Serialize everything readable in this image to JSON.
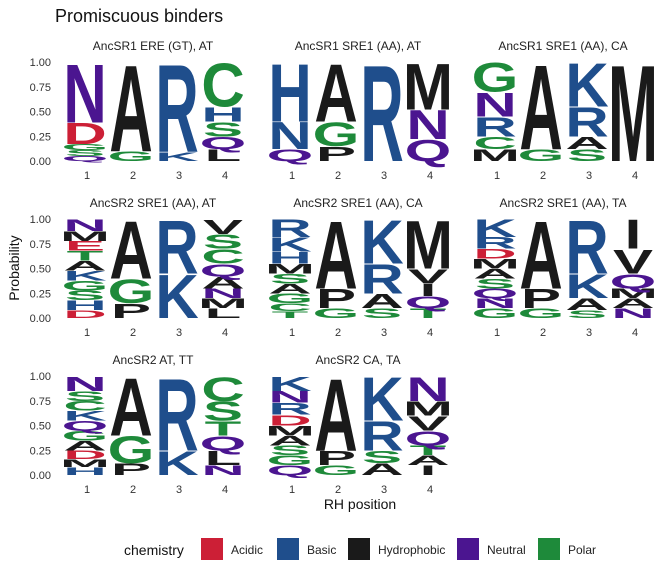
{
  "chart_data": {
    "type": "sequence-logo",
    "title": "Promiscuous binders",
    "xlabel": "RH position",
    "ylabel": "Probability",
    "ylim": [
      0,
      1
    ],
    "y_ticks": [
      "0.00",
      "0.25",
      "0.50",
      "0.75",
      "1.00"
    ],
    "x_ticks": [
      "1",
      "2",
      "3",
      "4"
    ],
    "legend": {
      "title": "chemistry",
      "position": "bottom",
      "entries": [
        {
          "label": "Acidic",
          "color": "#cc1f36"
        },
        {
          "label": "Basic",
          "color": "#1f4e8c"
        },
        {
          "label": "Hydrophobic",
          "color": "#1a1a1a"
        },
        {
          "label": "Neutral",
          "color": "#4b1590"
        },
        {
          "label": "Polar",
          "color": "#1e8a3a"
        }
      ]
    },
    "panels": [
      {
        "title": "AncSR1 ERE (GT), AT",
        "positions": [
          [
            {
              "aa": "N",
              "p": 0.61,
              "chem": "Neutral"
            },
            {
              "aa": "D",
              "p": 0.22,
              "chem": "Acidic"
            },
            {
              "aa": "S",
              "p": 0.06,
              "chem": "Polar"
            },
            {
              "aa": "G",
              "p": 0.06,
              "chem": "Polar"
            },
            {
              "aa": "Q",
              "p": 0.05,
              "chem": "Neutral"
            }
          ],
          [
            {
              "aa": "A",
              "p": 0.9,
              "chem": "Hydrophobic"
            },
            {
              "aa": "G",
              "p": 0.1,
              "chem": "Polar"
            }
          ],
          [
            {
              "aa": "R",
              "p": 0.91,
              "chem": "Basic"
            },
            {
              "aa": "K",
              "p": 0.09,
              "chem": "Basic"
            }
          ],
          [
            {
              "aa": "C",
              "p": 0.45,
              "chem": "Polar"
            },
            {
              "aa": "S",
              "p": 0.15,
              "chem": "Polar"
            },
            {
              "aa": "H",
              "p": 0.15,
              "chem": "Basic"
            },
            {
              "aa": "L",
              "p": 0.12,
              "chem": "Hydrophobic"
            },
            {
              "aa": "Q",
              "p": 0.13,
              "chem": "Neutral"
            }
          ]
        ]
      },
      {
        "title": "AncSR1 SRE1 (AA), AT",
        "positions": [
          [
            {
              "aa": "H",
              "p": 0.6,
              "chem": "Basic"
            },
            {
              "aa": "N",
              "p": 0.28,
              "chem": "Basic"
            },
            {
              "aa": "Q",
              "p": 0.12,
              "chem": "Neutral"
            }
          ],
          [
            {
              "aa": "A",
              "p": 0.6,
              "chem": "Hydrophobic"
            },
            {
              "aa": "G",
              "p": 0.25,
              "chem": "Polar"
            },
            {
              "aa": "P",
              "p": 0.15,
              "chem": "Hydrophobic"
            }
          ],
          [
            {
              "aa": "R",
              "p": 1.0,
              "chem": "Basic"
            }
          ],
          [
            {
              "aa": "M",
              "p": 0.48,
              "chem": "Hydrophobic"
            },
            {
              "aa": "Q",
              "p": 0.22,
              "chem": "Neutral"
            },
            {
              "aa": "N",
              "p": 0.3,
              "chem": "Neutral"
            }
          ]
        ]
      },
      {
        "title": "AncSR1 SRE1 (AA), CA",
        "positions": [
          [
            {
              "aa": "G",
              "p": 0.3,
              "chem": "Polar"
            },
            {
              "aa": "N",
              "p": 0.25,
              "chem": "Neutral"
            },
            {
              "aa": "R",
              "p": 0.2,
              "chem": "Basic"
            },
            {
              "aa": "M",
              "p": 0.12,
              "chem": "Hydrophobic"
            },
            {
              "aa": "C",
              "p": 0.13,
              "chem": "Polar"
            }
          ],
          [
            {
              "aa": "A",
              "p": 0.88,
              "chem": "Hydrophobic"
            },
            {
              "aa": "G",
              "p": 0.12,
              "chem": "Polar"
            }
          ],
          [
            {
              "aa": "K",
              "p": 0.45,
              "chem": "Basic"
            },
            {
              "aa": "R",
              "p": 0.3,
              "chem": "Basic"
            },
            {
              "aa": "S",
              "p": 0.12,
              "chem": "Polar"
            },
            {
              "aa": "A",
              "p": 0.13,
              "chem": "Hydrophobic"
            }
          ],
          [
            {
              "aa": "M",
              "p": 1.0,
              "chem": "Hydrophobic"
            }
          ]
        ]
      },
      {
        "title": "AncSR2 SRE1 (AA), AT",
        "positions": [
          [
            {
              "aa": "N",
              "p": 0.12,
              "chem": "Neutral"
            },
            {
              "aa": "H",
              "p": 0.1,
              "chem": "Basic"
            },
            {
              "aa": "D",
              "p": 0.08,
              "chem": "Acidic"
            },
            {
              "aa": "S",
              "p": 0.1,
              "chem": "Polar"
            },
            {
              "aa": "G",
              "p": 0.1,
              "chem": "Polar"
            },
            {
              "aa": "K",
              "p": 0.1,
              "chem": "Basic"
            },
            {
              "aa": "A",
              "p": 0.1,
              "chem": "Hydrophobic"
            },
            {
              "aa": "T",
              "p": 0.1,
              "chem": "Polar"
            },
            {
              "aa": "E",
              "p": 0.1,
              "chem": "Acidic"
            },
            {
              "aa": "M",
              "p": 0.1,
              "chem": "Hydrophobic"
            }
          ],
          [
            {
              "aa": "A",
              "p": 0.6,
              "chem": "Hydrophobic"
            },
            {
              "aa": "G",
              "p": 0.25,
              "chem": "Polar"
            },
            {
              "aa": "P",
              "p": 0.15,
              "chem": "Hydrophobic"
            }
          ],
          [
            {
              "aa": "R",
              "p": 0.55,
              "chem": "Basic"
            },
            {
              "aa": "K",
              "p": 0.45,
              "chem": "Basic"
            }
          ],
          [
            {
              "aa": "C",
              "p": 0.15,
              "chem": "Polar"
            },
            {
              "aa": "S",
              "p": 0.15,
              "chem": "Polar"
            },
            {
              "aa": "Q",
              "p": 0.13,
              "chem": "Neutral"
            },
            {
              "aa": "A",
              "p": 0.12,
              "chem": "Hydrophobic"
            },
            {
              "aa": "L",
              "p": 0.1,
              "chem": "Hydrophobic"
            },
            {
              "aa": "M",
              "p": 0.1,
              "chem": "Hydrophobic"
            },
            {
              "aa": "N",
              "p": 0.1,
              "chem": "Neutral"
            },
            {
              "aa": "V",
              "p": 0.15,
              "chem": "Hydrophobic"
            }
          ]
        ]
      },
      {
        "title": "AncSR2 SRE1 (AA), CA",
        "positions": [
          [
            {
              "aa": "R",
              "p": 0.18,
              "chem": "Basic"
            },
            {
              "aa": "K",
              "p": 0.15,
              "chem": "Basic"
            },
            {
              "aa": "H",
              "p": 0.12,
              "chem": "Basic"
            },
            {
              "aa": "G",
              "p": 0.1,
              "chem": "Polar"
            },
            {
              "aa": "A",
              "p": 0.1,
              "chem": "Hydrophobic"
            },
            {
              "aa": "S",
              "p": 0.1,
              "chem": "Polar"
            },
            {
              "aa": "M",
              "p": 0.1,
              "chem": "Hydrophobic"
            },
            {
              "aa": "C",
              "p": 0.08,
              "chem": "Polar"
            },
            {
              "aa": "T",
              "p": 0.07,
              "chem": "Polar"
            }
          ],
          [
            {
              "aa": "A",
              "p": 0.7,
              "chem": "Hydrophobic"
            },
            {
              "aa": "P",
              "p": 0.2,
              "chem": "Hydrophobic"
            },
            {
              "aa": "G",
              "p": 0.1,
              "chem": "Polar"
            }
          ],
          [
            {
              "aa": "K",
              "p": 0.45,
              "chem": "Basic"
            },
            {
              "aa": "R",
              "p": 0.3,
              "chem": "Basic"
            },
            {
              "aa": "A",
              "p": 0.15,
              "chem": "Hydrophobic"
            },
            {
              "aa": "S",
              "p": 0.1,
              "chem": "Polar"
            }
          ],
          [
            {
              "aa": "M",
              "p": 0.5,
              "chem": "Hydrophobic"
            },
            {
              "aa": "V",
              "p": 0.15,
              "chem": "Hydrophobic"
            },
            {
              "aa": "Q",
              "p": 0.12,
              "chem": "Neutral"
            },
            {
              "aa": "T",
              "p": 0.1,
              "chem": "Polar"
            },
            {
              "aa": "I",
              "p": 0.13,
              "chem": "Hydrophobic"
            }
          ]
        ]
      },
      {
        "title": "AncSR2 SRE1 (AA), TA",
        "positions": [
          [
            {
              "aa": "K",
              "p": 0.18,
              "chem": "Basic"
            },
            {
              "aa": "R",
              "p": 0.12,
              "chem": "Basic"
            },
            {
              "aa": "G",
              "p": 0.1,
              "chem": "Polar"
            },
            {
              "aa": "N",
              "p": 0.1,
              "chem": "Neutral"
            },
            {
              "aa": "Q",
              "p": 0.1,
              "chem": "Neutral"
            },
            {
              "aa": "S",
              "p": 0.1,
              "chem": "Polar"
            },
            {
              "aa": "A",
              "p": 0.1,
              "chem": "Hydrophobic"
            },
            {
              "aa": "M",
              "p": 0.1,
              "chem": "Hydrophobic"
            },
            {
              "aa": "D",
              "p": 0.1,
              "chem": "Acidic"
            }
          ],
          [
            {
              "aa": "A",
              "p": 0.7,
              "chem": "Hydrophobic"
            },
            {
              "aa": "P",
              "p": 0.2,
              "chem": "Hydrophobic"
            },
            {
              "aa": "G",
              "p": 0.1,
              "chem": "Polar"
            }
          ],
          [
            {
              "aa": "R",
              "p": 0.55,
              "chem": "Basic"
            },
            {
              "aa": "K",
              "p": 0.25,
              "chem": "Basic"
            },
            {
              "aa": "A",
              "p": 0.12,
              "chem": "Hydrophobic"
            },
            {
              "aa": "S",
              "p": 0.08,
              "chem": "Polar"
            }
          ],
          [
            {
              "aa": "I",
              "p": 0.3,
              "chem": "Hydrophobic"
            },
            {
              "aa": "V",
              "p": 0.25,
              "chem": "Hydrophobic"
            },
            {
              "aa": "Q",
              "p": 0.15,
              "chem": "Neutral"
            },
            {
              "aa": "N",
              "p": 0.1,
              "chem": "Neutral"
            },
            {
              "aa": "A",
              "p": 0.1,
              "chem": "Hydrophobic"
            },
            {
              "aa": "M",
              "p": 0.1,
              "chem": "Hydrophobic"
            }
          ]
        ]
      },
      {
        "title": "AncSR2 AT, TT",
        "positions": [
          [
            {
              "aa": "N",
              "p": 0.15,
              "chem": "Neutral"
            },
            {
              "aa": "A",
              "p": 0.1,
              "chem": "Hydrophobic"
            },
            {
              "aa": "G",
              "p": 0.1,
              "chem": "Polar"
            },
            {
              "aa": "Q",
              "p": 0.1,
              "chem": "Neutral"
            },
            {
              "aa": "K",
              "p": 0.1,
              "chem": "Basic"
            },
            {
              "aa": "C",
              "p": 0.1,
              "chem": "Polar"
            },
            {
              "aa": "S",
              "p": 0.1,
              "chem": "Polar"
            },
            {
              "aa": "H",
              "p": 0.08,
              "chem": "Basic"
            },
            {
              "aa": "D",
              "p": 0.09,
              "chem": "Acidic"
            },
            {
              "aa": "M",
              "p": 0.08,
              "chem": "Hydrophobic"
            }
          ],
          [
            {
              "aa": "A",
              "p": 0.6,
              "chem": "Hydrophobic"
            },
            {
              "aa": "G",
              "p": 0.28,
              "chem": "Polar"
            },
            {
              "aa": "P",
              "p": 0.12,
              "chem": "Hydrophobic"
            }
          ],
          [
            {
              "aa": "R",
              "p": 0.75,
              "chem": "Basic"
            },
            {
              "aa": "K",
              "p": 0.25,
              "chem": "Basic"
            }
          ],
          [
            {
              "aa": "C",
              "p": 0.25,
              "chem": "Polar"
            },
            {
              "aa": "S",
              "p": 0.2,
              "chem": "Polar"
            },
            {
              "aa": "L",
              "p": 0.15,
              "chem": "Hydrophobic"
            },
            {
              "aa": "Q",
              "p": 0.15,
              "chem": "Neutral"
            },
            {
              "aa": "N",
              "p": 0.1,
              "chem": "Neutral"
            },
            {
              "aa": "T",
              "p": 0.15,
              "chem": "Polar"
            }
          ]
        ]
      },
      {
        "title": "AncSR2 CA, TA",
        "positions": [
          [
            {
              "aa": "K",
              "p": 0.15,
              "chem": "Basic"
            },
            {
              "aa": "R",
              "p": 0.12,
              "chem": "Basic"
            },
            {
              "aa": "N",
              "p": 0.12,
              "chem": "Neutral"
            },
            {
              "aa": "Q",
              "p": 0.1,
              "chem": "Neutral"
            },
            {
              "aa": "G",
              "p": 0.1,
              "chem": "Polar"
            },
            {
              "aa": "S",
              "p": 0.1,
              "chem": "Polar"
            },
            {
              "aa": "A",
              "p": 0.1,
              "chem": "Hydrophobic"
            },
            {
              "aa": "M",
              "p": 0.1,
              "chem": "Hydrophobic"
            },
            {
              "aa": "D",
              "p": 0.11,
              "chem": "Acidic"
            }
          ],
          [
            {
              "aa": "A",
              "p": 0.75,
              "chem": "Hydrophobic"
            },
            {
              "aa": "P",
              "p": 0.15,
              "chem": "Hydrophobic"
            },
            {
              "aa": "G",
              "p": 0.1,
              "chem": "Polar"
            }
          ],
          [
            {
              "aa": "K",
              "p": 0.45,
              "chem": "Basic"
            },
            {
              "aa": "R",
              "p": 0.3,
              "chem": "Basic"
            },
            {
              "aa": "A",
              "p": 0.12,
              "chem": "Hydrophobic"
            },
            {
              "aa": "S",
              "p": 0.13,
              "chem": "Polar"
            }
          ],
          [
            {
              "aa": "N",
              "p": 0.25,
              "chem": "Neutral"
            },
            {
              "aa": "Q",
              "p": 0.15,
              "chem": "Neutral"
            },
            {
              "aa": "V",
              "p": 0.15,
              "chem": "Hydrophobic"
            },
            {
              "aa": "M",
              "p": 0.15,
              "chem": "Hydrophobic"
            },
            {
              "aa": "I",
              "p": 0.1,
              "chem": "Hydrophobic"
            },
            {
              "aa": "A",
              "p": 0.1,
              "chem": "Hydrophobic"
            },
            {
              "aa": "T",
              "p": 0.1,
              "chem": "Polar"
            }
          ]
        ]
      }
    ]
  }
}
